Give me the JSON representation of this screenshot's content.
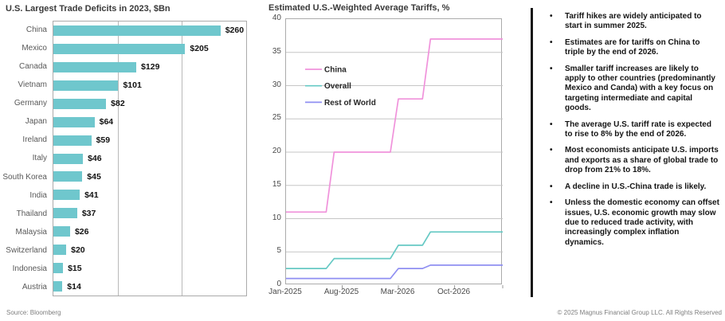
{
  "chart_data": [
    {
      "type": "bar",
      "orientation": "horizontal",
      "title": "U.S. Largest Trade Deficits in 2023, $Bn",
      "source": "Source: Bloomberg",
      "categories": [
        "China",
        "Mexico",
        "Canada",
        "Vietnam",
        "Germany",
        "Japan",
        "Ireland",
        "Italy",
        "South Korea",
        "India",
        "Thailand",
        "Malaysia",
        "Switzerland",
        "Indonesia",
        "Austria"
      ],
      "values": [
        260,
        205,
        129,
        101,
        82,
        64,
        59,
        46,
        45,
        41,
        37,
        26,
        20,
        15,
        14
      ],
      "value_labels": [
        "$260",
        "$205",
        "$129",
        "$101",
        "$82",
        "$64",
        "$59",
        "$46",
        "$45",
        "$41",
        "$37",
        "$26",
        "$20",
        "$15",
        "$14"
      ],
      "xlim": [
        0,
        300
      ],
      "x_gridlines": [
        100,
        200
      ],
      "bar_color": "#6FC7CD",
      "grid": "vertical-only",
      "legend": "none"
    },
    {
      "type": "line",
      "title": "Estimated U.S.-Weighted Average Tariffs, %",
      "ylim": [
        0,
        40
      ],
      "yticks": [
        0,
        5,
        10,
        15,
        20,
        25,
        30,
        35,
        40
      ],
      "x_axis": {
        "unit": "months since Jan-2025",
        "total_months": 27,
        "tick_months": [
          0,
          7,
          14,
          21
        ],
        "tick_labels": [
          "Jan-2025",
          "Aug-2025",
          "Mar-2026",
          "Oct-2026"
        ],
        "minor_tick_months": [
          7,
          14,
          21,
          27
        ]
      },
      "grid": "horizontal-only",
      "legend_position": "upper-left-inside",
      "series": [
        {
          "name": "China",
          "color": "#F092DB",
          "points_month_value": [
            [
              0,
              11
            ],
            [
              5,
              11
            ],
            [
              6,
              20
            ],
            [
              13,
              20
            ],
            [
              14,
              28
            ],
            [
              17,
              28
            ],
            [
              18,
              37
            ],
            [
              27,
              37
            ]
          ]
        },
        {
          "name": "Overall",
          "color": "#66C9C4",
          "points_month_value": [
            [
              0,
              2.5
            ],
            [
              5,
              2.5
            ],
            [
              6,
              4
            ],
            [
              13,
              4
            ],
            [
              14,
              6
            ],
            [
              17,
              6
            ],
            [
              18,
              8
            ],
            [
              27,
              8
            ]
          ]
        },
        {
          "name": "Rest of World",
          "color": "#8F8FF2",
          "points_month_value": [
            [
              0,
              1
            ],
            [
              13,
              1
            ],
            [
              14,
              2.5
            ],
            [
              17,
              2.5
            ],
            [
              18,
              3
            ],
            [
              27,
              3
            ]
          ]
        }
      ]
    }
  ],
  "right_panel": {
    "bullets": [
      "Tariff hikes are widely anticipated to start in summer 2025.",
      "Estimates are for tariffs on China to triple by the end of 2026.",
      "Smaller tariff increases are likely to apply to other countries (predominantly Mexico and Canda) with a key focus on targeting intermediate and capital goods.",
      "The average U.S. tariff rate is expected to rise to 8% by the end of 2026.",
      "Most economists anticipate U.S. imports and exports as a share of global trade to drop from 21% to 18%.",
      "A decline in U.S.-China trade is likely.",
      "Unless the domestic economy can offset issues, U.S. economic growth may slow due to reduced trade activity, with increasingly complex inflation dynamics."
    ]
  },
  "footer": {
    "copyright": "© 2025 Magnus Financial Group LLC. All Rights Reserved"
  }
}
